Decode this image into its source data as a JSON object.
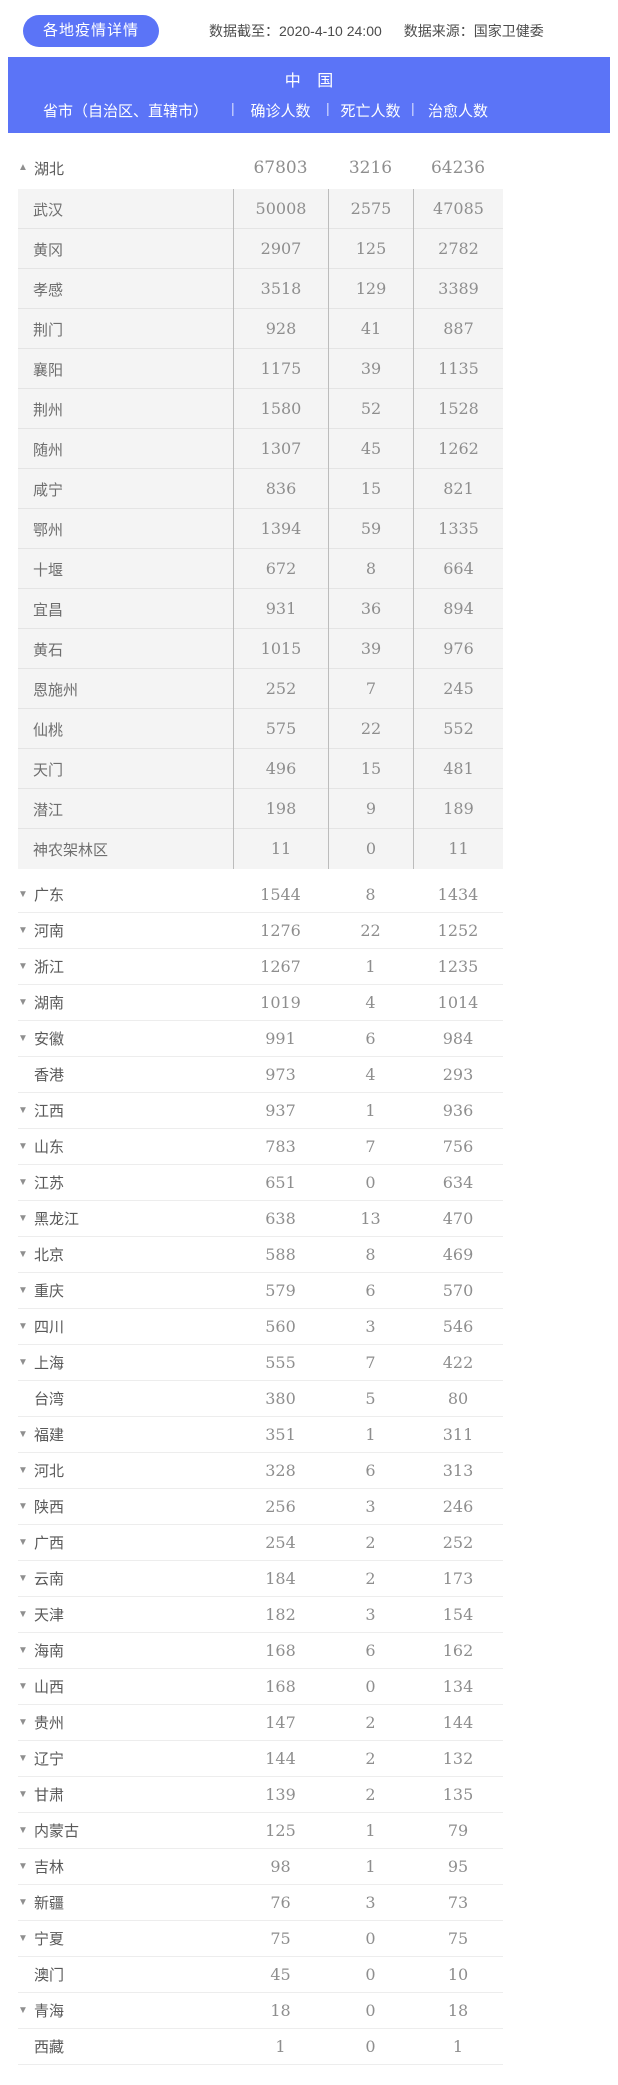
{
  "colors": {
    "accent": "#5b74f7",
    "subtable_bg": "#f4f4f4",
    "number_text": "#8e8e8e",
    "name_text": "#595959"
  },
  "icons": {
    "arrow_up": "▲",
    "arrow_down": "▼"
  },
  "header": {
    "title_badge": "各地疫情详情",
    "data_cutoff": "数据截至：2020-4-10 24:00",
    "data_source": "数据来源：国家卫健委"
  },
  "table": {
    "country": "中 国",
    "columns": {
      "name": "省市（自治区、直辖市）",
      "confirmed": "确诊人数",
      "deaths": "死亡人数",
      "cured": "治愈人数"
    },
    "rows": [
      {
        "name": "湖北",
        "confirmed": 67803,
        "deaths": 3216,
        "cured": 64236,
        "arrow": "up",
        "expandable": true,
        "children": [
          {
            "name": "武汉",
            "confirmed": 50008,
            "deaths": 2575,
            "cured": 47085
          },
          {
            "name": "黄冈",
            "confirmed": 2907,
            "deaths": 125,
            "cured": 2782
          },
          {
            "name": "孝感",
            "confirmed": 3518,
            "deaths": 129,
            "cured": 3389
          },
          {
            "name": "荆门",
            "confirmed": 928,
            "deaths": 41,
            "cured": 887
          },
          {
            "name": "襄阳",
            "confirmed": 1175,
            "deaths": 39,
            "cured": 1135
          },
          {
            "name": "荆州",
            "confirmed": 1580,
            "deaths": 52,
            "cured": 1528
          },
          {
            "name": "随州",
            "confirmed": 1307,
            "deaths": 45,
            "cured": 1262
          },
          {
            "name": "咸宁",
            "confirmed": 836,
            "deaths": 15,
            "cured": 821
          },
          {
            "name": "鄂州",
            "confirmed": 1394,
            "deaths": 59,
            "cured": 1335
          },
          {
            "name": "十堰",
            "confirmed": 672,
            "deaths": 8,
            "cured": 664
          },
          {
            "name": "宜昌",
            "confirmed": 931,
            "deaths": 36,
            "cured": 894
          },
          {
            "name": "黄石",
            "confirmed": 1015,
            "deaths": 39,
            "cured": 976
          },
          {
            "name": "恩施州",
            "confirmed": 252,
            "deaths": 7,
            "cured": 245
          },
          {
            "name": "仙桃",
            "confirmed": 575,
            "deaths": 22,
            "cured": 552
          },
          {
            "name": "天门",
            "confirmed": 496,
            "deaths": 15,
            "cured": 481
          },
          {
            "name": "潜江",
            "confirmed": 198,
            "deaths": 9,
            "cured": 189
          },
          {
            "name": "神农架林区",
            "confirmed": 11,
            "deaths": 0,
            "cured": 11
          }
        ]
      },
      {
        "name": "广东",
        "confirmed": 1544,
        "deaths": 8,
        "cured": 1434,
        "arrow": "down",
        "expandable": true
      },
      {
        "name": "河南",
        "confirmed": 1276,
        "deaths": 22,
        "cured": 1252,
        "arrow": "down",
        "expandable": true
      },
      {
        "name": "浙江",
        "confirmed": 1267,
        "deaths": 1,
        "cured": 1235,
        "arrow": "down",
        "expandable": true
      },
      {
        "name": "湖南",
        "confirmed": 1019,
        "deaths": 4,
        "cured": 1014,
        "arrow": "down",
        "expandable": true
      },
      {
        "name": "安徽",
        "confirmed": 991,
        "deaths": 6,
        "cured": 984,
        "arrow": "down",
        "expandable": true
      },
      {
        "name": "香港",
        "confirmed": 973,
        "deaths": 4,
        "cured": 293,
        "arrow": "none",
        "expandable": false
      },
      {
        "name": "江西",
        "confirmed": 937,
        "deaths": 1,
        "cured": 936,
        "arrow": "down",
        "expandable": true
      },
      {
        "name": "山东",
        "confirmed": 783,
        "deaths": 7,
        "cured": 756,
        "arrow": "down",
        "expandable": true
      },
      {
        "name": "江苏",
        "confirmed": 651,
        "deaths": 0,
        "cured": 634,
        "arrow": "down",
        "expandable": true
      },
      {
        "name": "黑龙江",
        "confirmed": 638,
        "deaths": 13,
        "cured": 470,
        "arrow": "down",
        "expandable": true
      },
      {
        "name": "北京",
        "confirmed": 588,
        "deaths": 8,
        "cured": 469,
        "arrow": "down",
        "expandable": true
      },
      {
        "name": "重庆",
        "confirmed": 579,
        "deaths": 6,
        "cured": 570,
        "arrow": "down",
        "expandable": true
      },
      {
        "name": "四川",
        "confirmed": 560,
        "deaths": 3,
        "cured": 546,
        "arrow": "down",
        "expandable": true
      },
      {
        "name": "上海",
        "confirmed": 555,
        "deaths": 7,
        "cured": 422,
        "arrow": "down",
        "expandable": true
      },
      {
        "name": "台湾",
        "confirmed": 380,
        "deaths": 5,
        "cured": 80,
        "arrow": "none",
        "expandable": false
      },
      {
        "name": "福建",
        "confirmed": 351,
        "deaths": 1,
        "cured": 311,
        "arrow": "down",
        "expandable": true
      },
      {
        "name": "河北",
        "confirmed": 328,
        "deaths": 6,
        "cured": 313,
        "arrow": "down",
        "expandable": true
      },
      {
        "name": "陕西",
        "confirmed": 256,
        "deaths": 3,
        "cured": 246,
        "arrow": "down",
        "expandable": true
      },
      {
        "name": "广西",
        "confirmed": 254,
        "deaths": 2,
        "cured": 252,
        "arrow": "down",
        "expandable": true
      },
      {
        "name": "云南",
        "confirmed": 184,
        "deaths": 2,
        "cured": 173,
        "arrow": "down",
        "expandable": true
      },
      {
        "name": "天津",
        "confirmed": 182,
        "deaths": 3,
        "cured": 154,
        "arrow": "down",
        "expandable": true
      },
      {
        "name": "海南",
        "confirmed": 168,
        "deaths": 6,
        "cured": 162,
        "arrow": "down",
        "expandable": true
      },
      {
        "name": "山西",
        "confirmed": 168,
        "deaths": 0,
        "cured": 134,
        "arrow": "down",
        "expandable": true
      },
      {
        "name": "贵州",
        "confirmed": 147,
        "deaths": 2,
        "cured": 144,
        "arrow": "down",
        "expandable": true
      },
      {
        "name": "辽宁",
        "confirmed": 144,
        "deaths": 2,
        "cured": 132,
        "arrow": "down",
        "expandable": true
      },
      {
        "name": "甘肃",
        "confirmed": 139,
        "deaths": 2,
        "cured": 135,
        "arrow": "down",
        "expandable": true
      },
      {
        "name": "内蒙古",
        "confirmed": 125,
        "deaths": 1,
        "cured": 79,
        "arrow": "down",
        "expandable": true
      },
      {
        "name": "吉林",
        "confirmed": 98,
        "deaths": 1,
        "cured": 95,
        "arrow": "down",
        "expandable": true
      },
      {
        "name": "新疆",
        "confirmed": 76,
        "deaths": 3,
        "cured": 73,
        "arrow": "down",
        "expandable": true
      },
      {
        "name": "宁夏",
        "confirmed": 75,
        "deaths": 0,
        "cured": 75,
        "arrow": "down",
        "expandable": true
      },
      {
        "name": "澳门",
        "confirmed": 45,
        "deaths": 0,
        "cured": 10,
        "arrow": "none",
        "expandable": false
      },
      {
        "name": "青海",
        "confirmed": 18,
        "deaths": 0,
        "cured": 18,
        "arrow": "down",
        "expandable": true
      },
      {
        "name": "西藏",
        "confirmed": 1,
        "deaths": 0,
        "cured": 1,
        "arrow": "none",
        "expandable": false
      }
    ]
  }
}
